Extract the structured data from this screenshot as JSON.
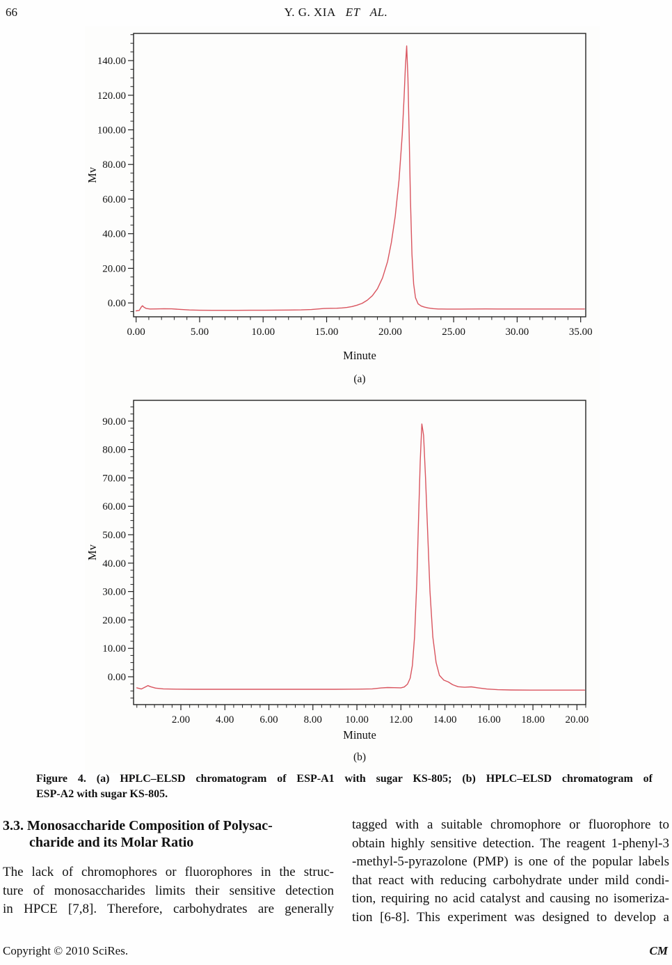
{
  "page": {
    "page_number": "66",
    "running_head_name": "Y. G. XIA",
    "running_head_etal": "ET AL.",
    "footer_left": "Copyright © 2010 SciRes.",
    "footer_right": "CM"
  },
  "figure": {
    "caption_lines": [
      "Figure 4. (a) HPLC–ELSD chromatogram of ESP-A1 with sugar KS-805; (b) HPLC–ELSD chromatogram of",
      "ESP-A2 with sugar KS-805."
    ]
  },
  "article": {
    "heading_lines": [
      "3.3. Monosaccharide Composition of Polysac-",
      "charide and its Molar Ratio"
    ],
    "left_column_lines": [
      "The lack of chromophores or fluorophores in the struc-",
      "ture of monosaccharides limits their sensitive detection",
      "in HPCE [7,8]. Therefore, carbohydrates are generally"
    ],
    "right_column_lines": [
      "tagged with a suitable chromophore or fluorophore to",
      "obtain highly sensitive detection. The reagent 1-phenyl-3",
      "-methyl-5-pyrazolone (PMP) is one of the popular labels",
      "that react with reducing carbohydrate under mild condi-",
      "tion, requiring no acid catalyst and causing no isomeriza-",
      "tion [6-8]. This experiment was designed to develop a"
    ]
  },
  "chart_data": [
    {
      "type": "line",
      "title": "",
      "xlabel": "Minute",
      "ylabel": "Mv",
      "sub_caption": "(a)",
      "description": "HPLC–ELSD chromatogram of ESP-A1 with sugar KS-805",
      "line_color": "#d9545e",
      "frame_color": "#222222",
      "plot_bg": "#fdfdfc",
      "grid": false,
      "legend": false,
      "xlim": [
        -0.2,
        35.4
      ],
      "ylim": [
        -8,
        155.7
      ],
      "x_major_ticks": [
        0,
        5,
        10,
        15,
        20,
        25,
        30,
        35
      ],
      "x_minor_step": 1,
      "y_major_ticks": [
        0,
        20,
        40,
        60,
        80,
        100,
        120,
        140
      ],
      "y_minor_step": 5,
      "tick_decimals": 2,
      "peaks": [
        {
          "retention_time_min": 21.3,
          "apex_mv": 148.5
        }
      ],
      "series": [
        {
          "name": "ESP-A1",
          "points": [
            [
              0.0,
              -4.6
            ],
            [
              0.25,
              -4.3
            ],
            [
              0.4,
              -2.4
            ],
            [
              0.5,
              -1.6
            ],
            [
              0.62,
              -2.5
            ],
            [
              0.8,
              -3.2
            ],
            [
              1.1,
              -3.5
            ],
            [
              1.6,
              -3.45
            ],
            [
              2.2,
              -3.35
            ],
            [
              2.8,
              -3.4
            ],
            [
              3.4,
              -3.7
            ],
            [
              4.2,
              -4.05
            ],
            [
              5.0,
              -4.2
            ],
            [
              6.0,
              -4.25
            ],
            [
              7.0,
              -4.25
            ],
            [
              8.0,
              -4.25
            ],
            [
              9.0,
              -4.2
            ],
            [
              10.0,
              -4.2
            ],
            [
              11.0,
              -4.15
            ],
            [
              12.0,
              -4.1
            ],
            [
              13.0,
              -4.0
            ],
            [
              13.8,
              -3.8
            ],
            [
              14.3,
              -3.5
            ],
            [
              14.8,
              -3.2
            ],
            [
              15.3,
              -3.1
            ],
            [
              15.8,
              -3.05
            ],
            [
              16.2,
              -2.9
            ],
            [
              16.6,
              -2.6
            ],
            [
              17.0,
              -2.1
            ],
            [
              17.4,
              -1.3
            ],
            [
              17.8,
              -0.2
            ],
            [
              18.2,
              1.6
            ],
            [
              18.6,
              4.2
            ],
            [
              19.0,
              8.2
            ],
            [
              19.4,
              14.5
            ],
            [
              19.8,
              24.0
            ],
            [
              20.1,
              35.0
            ],
            [
              20.4,
              50.0
            ],
            [
              20.7,
              71.0
            ],
            [
              20.95,
              97.0
            ],
            [
              21.1,
              119.0
            ],
            [
              21.2,
              136.0
            ],
            [
              21.3,
              148.5
            ],
            [
              21.4,
              130.0
            ],
            [
              21.5,
              97.0
            ],
            [
              21.6,
              60.0
            ],
            [
              21.72,
              28.0
            ],
            [
              21.85,
              11.0
            ],
            [
              22.0,
              3.0
            ],
            [
              22.2,
              -0.5
            ],
            [
              22.45,
              -1.8
            ],
            [
              22.7,
              -2.4
            ],
            [
              23.0,
              -2.9
            ],
            [
              23.4,
              -3.3
            ],
            [
              23.8,
              -3.5
            ],
            [
              24.5,
              -3.55
            ],
            [
              25.5,
              -3.55
            ],
            [
              26.5,
              -3.5
            ],
            [
              27.5,
              -3.45
            ],
            [
              28.5,
              -3.5
            ],
            [
              30.0,
              -3.5
            ],
            [
              32.0,
              -3.5
            ],
            [
              34.0,
              -3.5
            ],
            [
              35.3,
              -3.5
            ]
          ]
        }
      ]
    },
    {
      "type": "line",
      "title": "",
      "xlabel": "Minute",
      "ylabel": "Mv",
      "sub_caption": "(b)",
      "description": "HPLC–ELSD chromatogram of ESP-A2 with sugar KS-805",
      "line_color": "#d9545e",
      "frame_color": "#222222",
      "plot_bg": "#fdfdfc",
      "grid": false,
      "legend": false,
      "xlim": [
        -0.15,
        20.4
      ],
      "ylim": [
        -9.8,
        97.3
      ],
      "x_major_ticks": [
        2,
        4,
        6,
        8,
        10,
        12,
        14,
        16,
        18,
        20
      ],
      "x_minor_step": 0.4,
      "y_major_ticks": [
        0,
        10,
        20,
        30,
        40,
        50,
        60,
        70,
        80,
        90
      ],
      "y_minor_step": 2.5,
      "tick_decimals": 2,
      "peaks": [
        {
          "retention_time_min": 12.95,
          "apex_mv": 89.0
        }
      ],
      "series": [
        {
          "name": "ESP-A2",
          "points": [
            [
              0.0,
              -3.9
            ],
            [
              0.2,
              -4.3
            ],
            [
              0.38,
              -3.6
            ],
            [
              0.5,
              -3.1
            ],
            [
              0.62,
              -3.5
            ],
            [
              0.85,
              -4.0
            ],
            [
              1.2,
              -4.25
            ],
            [
              1.8,
              -4.35
            ],
            [
              2.6,
              -4.4
            ],
            [
              3.4,
              -4.4
            ],
            [
              4.2,
              -4.4
            ],
            [
              5.0,
              -4.4
            ],
            [
              6.0,
              -4.4
            ],
            [
              7.0,
              -4.4
            ],
            [
              8.0,
              -4.4
            ],
            [
              9.0,
              -4.4
            ],
            [
              10.0,
              -4.35
            ],
            [
              10.7,
              -4.25
            ],
            [
              11.1,
              -3.95
            ],
            [
              11.4,
              -3.8
            ],
            [
              11.7,
              -3.85
            ],
            [
              12.0,
              -3.9
            ],
            [
              12.15,
              -3.6
            ],
            [
              12.3,
              -2.6
            ],
            [
              12.42,
              -0.5
            ],
            [
              12.52,
              4.0
            ],
            [
              12.62,
              14.0
            ],
            [
              12.72,
              33.0
            ],
            [
              12.8,
              55.0
            ],
            [
              12.88,
              76.0
            ],
            [
              12.95,
              89.0
            ],
            [
              13.03,
              85.0
            ],
            [
              13.12,
              70.0
            ],
            [
              13.22,
              50.0
            ],
            [
              13.32,
              30.0
            ],
            [
              13.45,
              14.0
            ],
            [
              13.6,
              5.0
            ],
            [
              13.75,
              0.5
            ],
            [
              13.95,
              -1.2
            ],
            [
              14.15,
              -1.8
            ],
            [
              14.35,
              -2.8
            ],
            [
              14.6,
              -3.5
            ],
            [
              14.9,
              -3.7
            ],
            [
              15.2,
              -3.55
            ],
            [
              15.5,
              -3.9
            ],
            [
              15.9,
              -4.3
            ],
            [
              16.4,
              -4.55
            ],
            [
              17.0,
              -4.65
            ],
            [
              18.0,
              -4.7
            ],
            [
              19.0,
              -4.7
            ],
            [
              20.0,
              -4.7
            ],
            [
              20.35,
              -4.7
            ]
          ]
        }
      ]
    }
  ]
}
